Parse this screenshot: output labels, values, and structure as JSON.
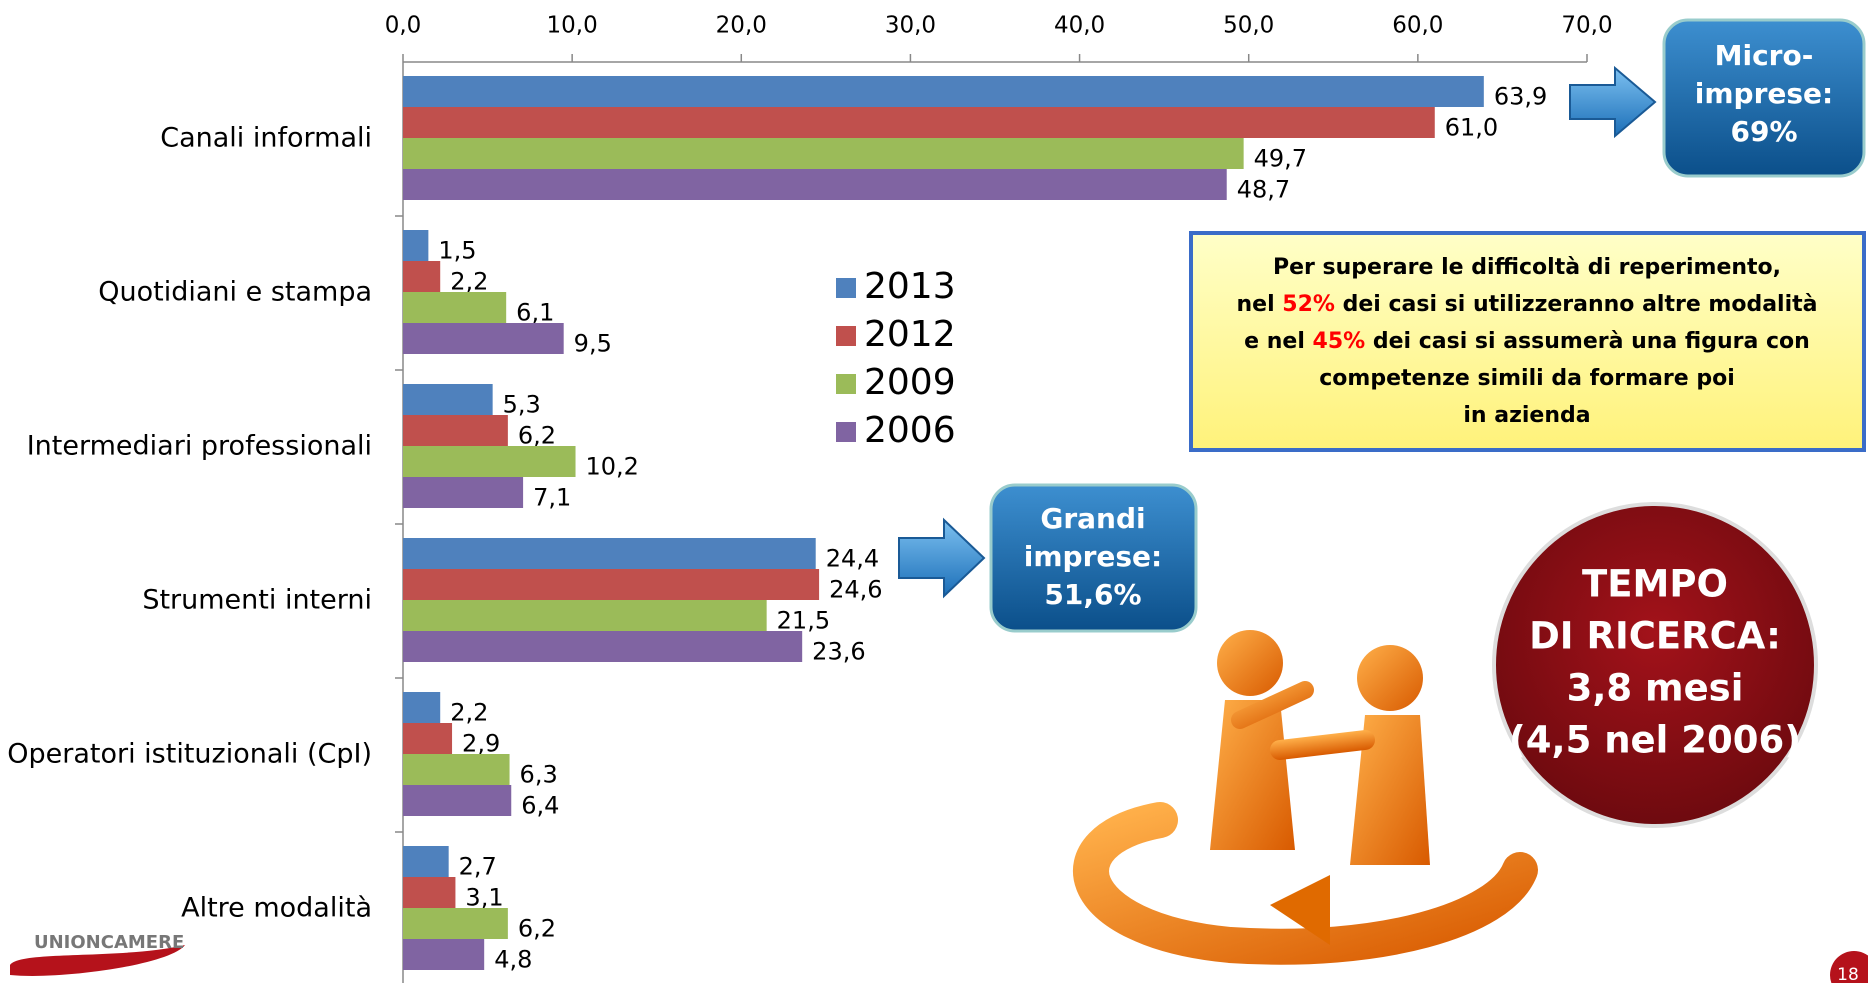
{
  "chart_data": {
    "type": "hbar",
    "categories": [
      "Canali informali",
      "Quotidiani e stampa",
      "Intermediari professionali",
      "Strumenti interni",
      "Operatori istituzionali (CpI)",
      "Altre modalità"
    ],
    "series": [
      {
        "name": "2013",
        "color": "#4f81bd",
        "values": [
          63.9,
          1.5,
          5.3,
          24.4,
          2.2,
          2.7
        ],
        "value_labels": [
          "63,9",
          "1,5",
          "5,3",
          "24,4",
          "2,2",
          "2,7"
        ]
      },
      {
        "name": "2012",
        "color": "#c0504d",
        "values": [
          61.0,
          2.2,
          6.2,
          24.6,
          2.9,
          3.1
        ],
        "value_labels": [
          "61,0",
          "2,2",
          "6,2",
          "24,6",
          "2,9",
          "3,1"
        ]
      },
      {
        "name": "2009",
        "color": "#9bbb59",
        "values": [
          49.7,
          6.1,
          10.2,
          21.5,
          6.3,
          6.2
        ],
        "value_labels": [
          "49,7",
          "6,1",
          "10,2",
          "21,5",
          "6,3",
          "6,2"
        ]
      },
      {
        "name": "2006",
        "color": "#8064a2",
        "values": [
          48.7,
          9.5,
          7.1,
          23.6,
          6.4,
          4.8
        ],
        "value_labels": [
          "48,7",
          "9,5",
          "7,1",
          "23,6",
          "6,4",
          "4,8"
        ]
      }
    ],
    "xlim": [
      0,
      70
    ],
    "xticks": [
      {
        "value": 0,
        "label": "0,0"
      },
      {
        "value": 10,
        "label": "10,0"
      },
      {
        "value": 20,
        "label": "20,0"
      },
      {
        "value": 30,
        "label": "30,0"
      },
      {
        "value": 40,
        "label": "40,0"
      },
      {
        "value": 50,
        "label": "50,0"
      },
      {
        "value": 60,
        "label": "60,0"
      },
      {
        "value": 70,
        "label": "70,0"
      }
    ]
  },
  "callouts": {
    "micro": [
      "Micro-",
      "imprese:",
      "69%"
    ],
    "grandi": [
      "Grandi",
      "imprese:",
      "51,6%"
    ]
  },
  "note": {
    "highlight_color": "#ff0000",
    "lines": [
      [
        {
          "text": "Per superare le difficoltà di reperimento,"
        }
      ],
      [
        {
          "text": "nel "
        },
        {
          "text": "52%",
          "highlight": true
        },
        {
          "text": " dei casi si utilizzeranno altre modalità"
        }
      ],
      [
        {
          "text": "e nel "
        },
        {
          "text": "45%",
          "highlight": true
        },
        {
          "text": " dei casi si assumerà una figura con"
        }
      ],
      [
        {
          "text": "competenze simili da formare poi"
        }
      ],
      [
        {
          "text": "in azienda"
        }
      ]
    ]
  },
  "badge": [
    "TEMPO",
    "DI RICERCA:",
    "3,8 mesi",
    "(4,5 nel 2006)"
  ],
  "footer": {
    "logo": "UNIONCAMERE",
    "page": "18"
  }
}
